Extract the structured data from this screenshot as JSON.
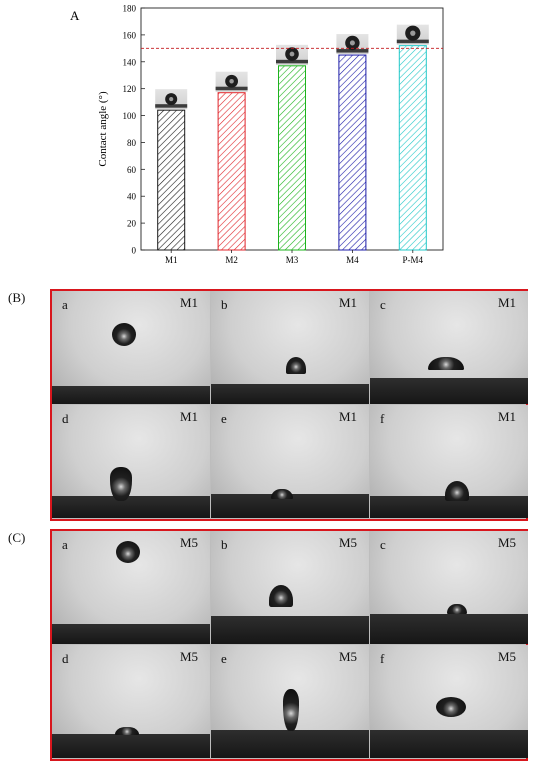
{
  "panel_labels": {
    "a": "A",
    "b": "(B)",
    "c": "(C)"
  },
  "chart_data": {
    "type": "bar",
    "categories": [
      "M1",
      "M2",
      "M3",
      "M4",
      "P-M4"
    ],
    "values": [
      104,
      117,
      137,
      145,
      152
    ],
    "ylabel": "Contact angle (°)",
    "ylim": [
      0,
      180
    ],
    "yticks": [
      0,
      20,
      40,
      60,
      80,
      100,
      120,
      140,
      160,
      180
    ],
    "reference_line": 150,
    "bar_colors": [
      "#1a1a1a",
      "#e0262b",
      "#1db31d",
      "#1c1ca8",
      "#23c8c8"
    ]
  },
  "grid_b": {
    "cells": [
      {
        "letter": "a",
        "sample": "M1"
      },
      {
        "letter": "b",
        "sample": "M1"
      },
      {
        "letter": "c",
        "sample": "M1"
      },
      {
        "letter": "d",
        "sample": "M1"
      },
      {
        "letter": "e",
        "sample": "M1"
      },
      {
        "letter": "f",
        "sample": "M1"
      }
    ]
  },
  "grid_c": {
    "cells": [
      {
        "letter": "a",
        "sample": "M5"
      },
      {
        "letter": "b",
        "sample": "M5"
      },
      {
        "letter": "c",
        "sample": "M5"
      },
      {
        "letter": "d",
        "sample": "M5"
      },
      {
        "letter": "e",
        "sample": "M5"
      },
      {
        "letter": "f",
        "sample": "M5"
      }
    ]
  }
}
